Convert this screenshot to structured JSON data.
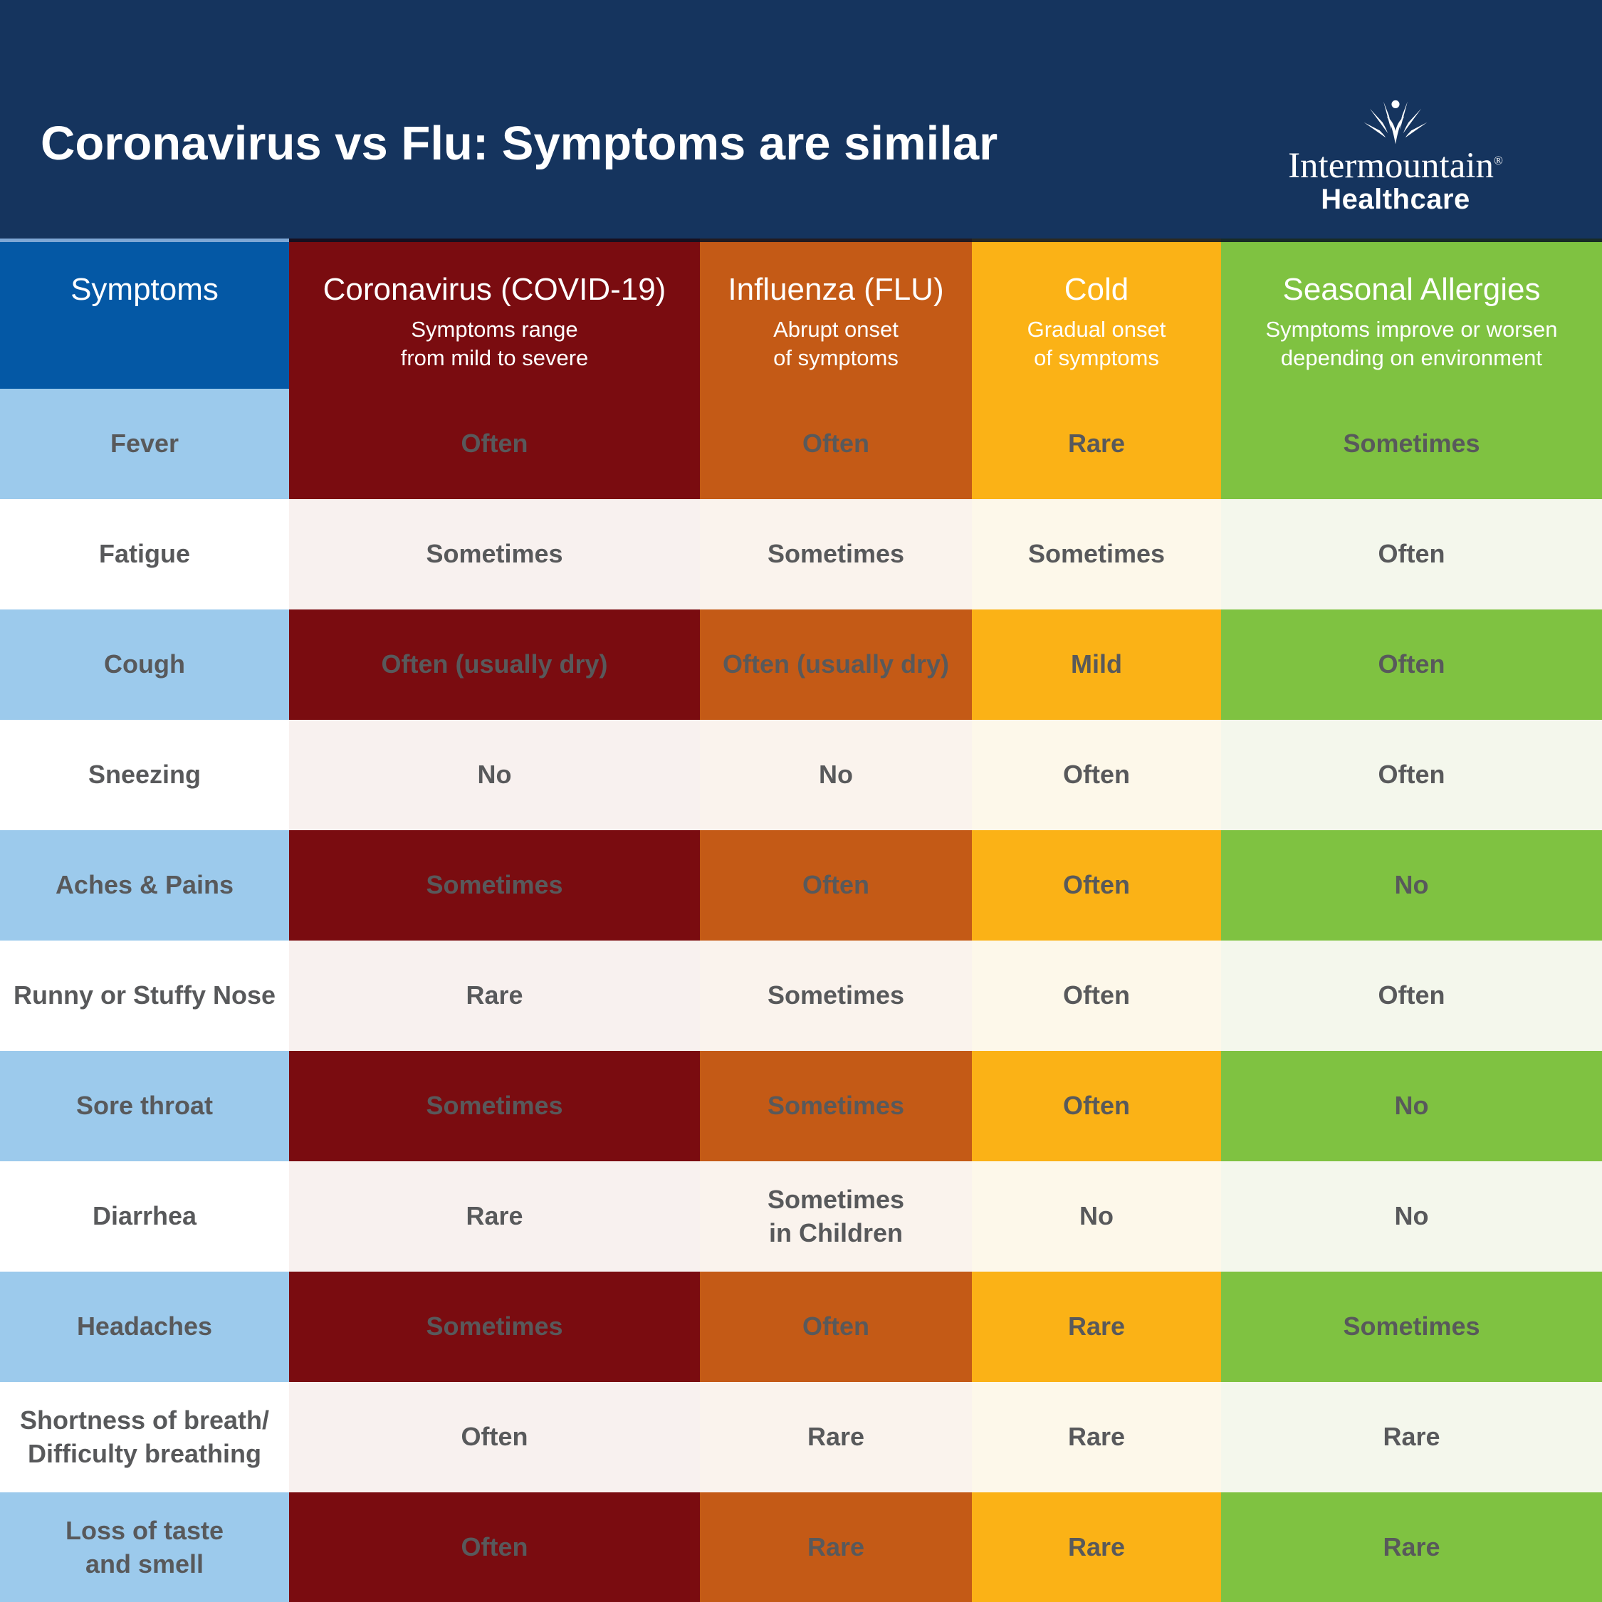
{
  "header": {
    "title": "Coronavirus vs Flu: Symptoms are similar",
    "logo": {
      "name": "Intermountain",
      "registered": "®",
      "division": "Healthcare"
    }
  },
  "table": {
    "columns": [
      {
        "id": "symptoms",
        "label": "Symptoms",
        "subtitle": "",
        "header_color": "#0458A5",
        "row_color": "#9CCAEC",
        "alt_color": "#FFFFFF"
      },
      {
        "id": "covid",
        "label": "Coronavirus (COVID-19)",
        "subtitle": "Symptoms range\nfrom mild to severe",
        "header_color": "#7A0C10",
        "row_color": "#7A0C10",
        "alt_color": "#F8F1EF"
      },
      {
        "id": "flu",
        "label": "Influenza (FLU)",
        "subtitle": "Abrupt onset\nof symptoms",
        "header_color": "#C45A16",
        "row_color": "#C45A16",
        "alt_color": "#FAF3ED"
      },
      {
        "id": "cold",
        "label": "Cold",
        "subtitle": "Gradual onset\nof symptoms",
        "header_color": "#FBB216",
        "row_color": "#FBB216",
        "alt_color": "#FDF8EA"
      },
      {
        "id": "allergies",
        "label": "Seasonal Allergies",
        "subtitle": "Symptoms improve or worsen\ndepending on environment",
        "header_color": "#7FC241",
        "row_color": "#7FC241",
        "alt_color": "#F4F7EC"
      }
    ],
    "rows": [
      {
        "symptom": "Fever",
        "values": [
          "Often",
          "Often",
          "Rare",
          "Sometimes"
        ]
      },
      {
        "symptom": "Fatigue",
        "values": [
          "Sometimes",
          "Sometimes",
          "Sometimes",
          "Often"
        ]
      },
      {
        "symptom": "Cough",
        "values": [
          "Often (usually dry)",
          "Often (usually dry)",
          "Mild",
          "Often"
        ]
      },
      {
        "symptom": "Sneezing",
        "values": [
          "No",
          "No",
          "Often",
          "Often"
        ]
      },
      {
        "symptom": "Aches & Pains",
        "values": [
          "Sometimes",
          "Often",
          "Often",
          "No"
        ]
      },
      {
        "symptom": "Runny or Stuffy Nose",
        "values": [
          "Rare",
          "Sometimes",
          "Often",
          "Often"
        ]
      },
      {
        "symptom": "Sore throat",
        "values": [
          "Sometimes",
          "Sometimes",
          "Often",
          "No"
        ]
      },
      {
        "symptom": "Diarrhea",
        "values": [
          "Rare",
          "Sometimes\nin Children",
          "No",
          "No"
        ]
      },
      {
        "symptom": "Headaches",
        "values": [
          "Sometimes",
          "Often",
          "Rare",
          "Sometimes"
        ]
      },
      {
        "symptom": "Shortness of breath/\nDifficulty breathing",
        "values": [
          "Often",
          "Rare",
          "Rare",
          "Rare"
        ]
      },
      {
        "symptom": "Loss of taste\nand smell",
        "values": [
          "Often",
          "Rare",
          "Rare",
          "Rare"
        ]
      }
    ]
  },
  "colors": {
    "banner_navy": "#15345E",
    "cell_text_gray": "#58595B",
    "header_text": "#FFFFFF"
  },
  "chart_data": {
    "type": "table",
    "title": "Coronavirus vs Flu: Symptoms are similar",
    "columns": [
      "Symptoms",
      "Coronavirus (COVID-19)",
      "Influenza (FLU)",
      "Cold",
      "Seasonal Allergies"
    ],
    "column_subtitles": [
      "",
      "Symptoms range from mild to severe",
      "Abrupt onset of symptoms",
      "Gradual onset of symptoms",
      "Symptoms improve or worsen depending on environment"
    ],
    "rows": [
      [
        "Fever",
        "Often",
        "Often",
        "Rare",
        "Sometimes"
      ],
      [
        "Fatigue",
        "Sometimes",
        "Sometimes",
        "Sometimes",
        "Often"
      ],
      [
        "Cough",
        "Often (usually dry)",
        "Often (usually dry)",
        "Mild",
        "Often"
      ],
      [
        "Sneezing",
        "No",
        "No",
        "Often",
        "Often"
      ],
      [
        "Aches & Pains",
        "Sometimes",
        "Often",
        "Often",
        "No"
      ],
      [
        "Runny or Stuffy Nose",
        "Rare",
        "Sometimes",
        "Often",
        "Often"
      ],
      [
        "Sore throat",
        "Sometimes",
        "Sometimes",
        "Often",
        "No"
      ],
      [
        "Diarrhea",
        "Rare",
        "Sometimes in Children",
        "No",
        "No"
      ],
      [
        "Headaches",
        "Sometimes",
        "Often",
        "Rare",
        "Sometimes"
      ],
      [
        "Shortness of breath/Difficulty breathing",
        "Often",
        "Rare",
        "Rare",
        "Rare"
      ],
      [
        "Loss of taste and smell",
        "Often",
        "Rare",
        "Rare",
        "Rare"
      ]
    ]
  }
}
